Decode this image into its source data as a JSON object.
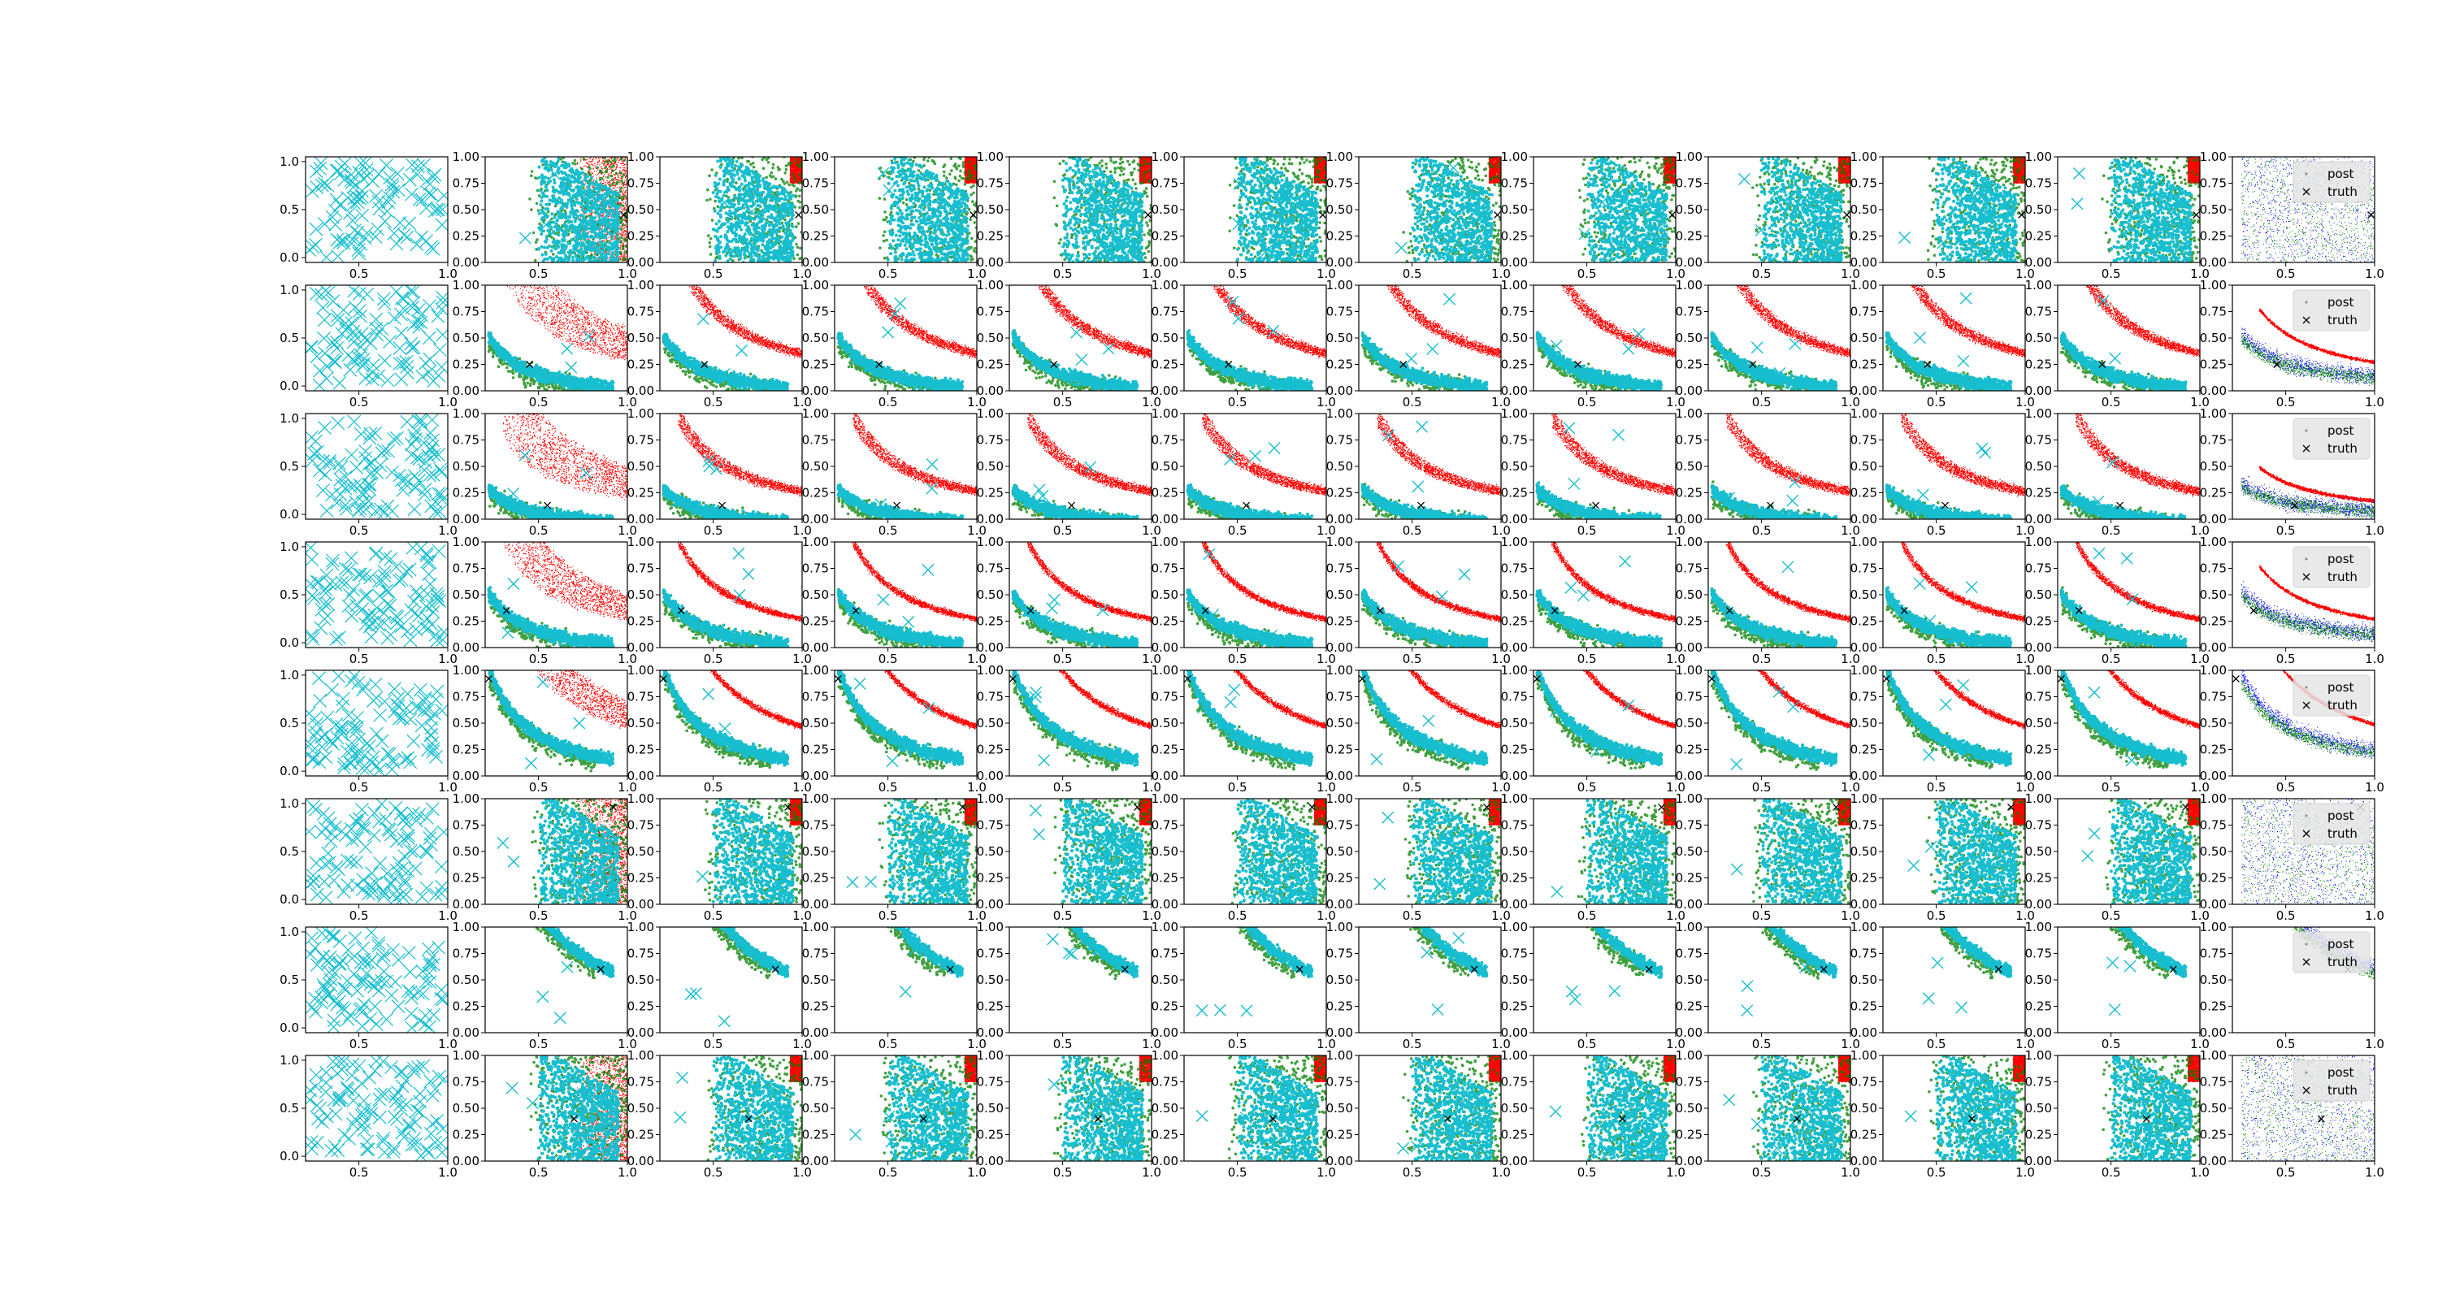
{
  "chart_data": {
    "type": "scatter",
    "layout": {
      "rows": 8,
      "cols": 12
    },
    "xlim": [
      0.2,
      1.0
    ],
    "ylim_first_col": [
      -0.05,
      1.05
    ],
    "ylim_other_cols": [
      0.0,
      1.0
    ],
    "x_ticks": [
      "0.5",
      "1.0"
    ],
    "y_ticks_first_col": [
      "0.0",
      "0.5",
      "1.0"
    ],
    "y_ticks_other_cols": [
      "0.00",
      "0.25",
      "0.50",
      "0.75",
      "1.00"
    ],
    "legend": {
      "placement": "top-right",
      "entries": [
        "post",
        "truth"
      ]
    },
    "colors": {
      "prior_x": "#17becf",
      "accepted": "#17becf",
      "rejected": "#ff0000",
      "population": "#008000",
      "posterior": "#0000ff",
      "truth": "#000000",
      "legend_bg": "#e6e6e6"
    },
    "truth_points": [
      {
        "row": 1,
        "x": 0.98,
        "y": 0.45
      },
      {
        "row": 2,
        "x": 0.45,
        "y": 0.25
      },
      {
        "row": 3,
        "x": 0.55,
        "y": 0.13
      },
      {
        "row": 4,
        "x": 0.32,
        "y": 0.35
      },
      {
        "row": 5,
        "x": 0.22,
        "y": 0.92
      },
      {
        "row": 6,
        "x": 0.92,
        "y": 0.92
      },
      {
        "row": 7,
        "x": 0.85,
        "y": 0.6
      },
      {
        "row": 8,
        "x": 0.7,
        "y": 0.4
      }
    ],
    "row_patterns": [
      "diffuse",
      "band",
      "band",
      "curve",
      "curve",
      "diffuse",
      "band",
      "diffuse"
    ],
    "series": [
      {
        "name": "post"
      },
      {
        "name": "truth"
      }
    ]
  }
}
